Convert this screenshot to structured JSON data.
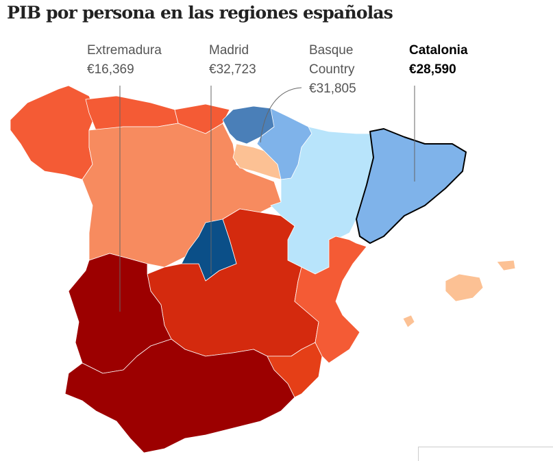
{
  "title": "PIB por persona en las regiones españolas",
  "annotations": [
    {
      "region": "Extremadura",
      "lines": [
        "Extremadura",
        "€16,369"
      ],
      "emphasis": false
    },
    {
      "region": "Madrid",
      "lines": [
        "Madrid",
        "€32,723"
      ],
      "emphasis": false
    },
    {
      "region": "Basque Country",
      "lines": [
        "Basque",
        "Country",
        "€31,805"
      ],
      "emphasis": false
    },
    {
      "region": "Catalonia",
      "lines": [
        "Catalonia",
        "€28,590"
      ],
      "emphasis": true
    }
  ],
  "colors": {
    "darkest_red": "#9c0000",
    "dark_red": "#d42a0e",
    "red": "#e53f17",
    "orange_red": "#f45b35",
    "salmon": "#f78b5f",
    "peach": "#fcc194",
    "light_blue": "#b8e4fb",
    "mid_blue": "#7fb3ea",
    "blue": "#4a7fb8",
    "dark_blue": "#0b4f88",
    "highlight_outline": "#000000"
  }
}
